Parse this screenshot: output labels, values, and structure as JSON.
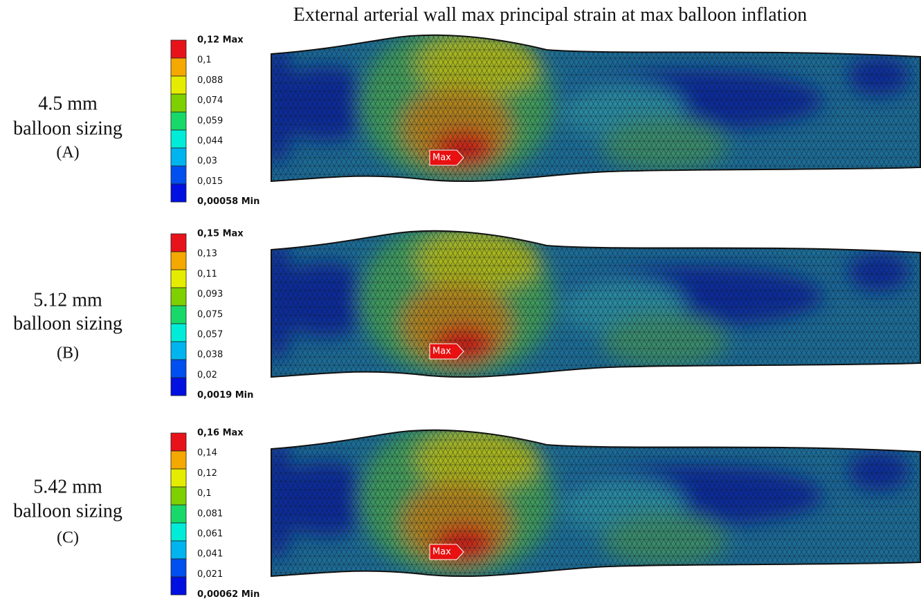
{
  "title": "External arterial wall max principal strain at max balloon inflation",
  "scale_colors": [
    "#e8121b",
    "#f5a800",
    "#e6ec00",
    "#7ed000",
    "#18d86a",
    "#00ecd8",
    "#00b4f0",
    "#0050f0",
    "#0010e0"
  ],
  "panels": [
    {
      "label": [
        "4.5 mm",
        "balloon sizing",
        "(A)"
      ],
      "legend": [
        "0,12 Max",
        "0,1",
        "0,088",
        "0,074",
        "0,059",
        "0,044",
        "0,03",
        "0,015",
        "0,00058 Min"
      ],
      "marker": "Max"
    },
    {
      "label": [
        "5.12 mm",
        "balloon sizing",
        "(B)"
      ],
      "legend": [
        "0,15 Max",
        "0,13",
        "0,11",
        "0,093",
        "0,075",
        "0,057",
        "0,038",
        "0,02",
        "0,0019 Min"
      ],
      "marker": "Max"
    },
    {
      "label": [
        "5.42 mm",
        "balloon sizing",
        "(C)"
      ],
      "legend": [
        "0,16 Max",
        "0,14",
        "0,12",
        "0,1",
        "0,081",
        "0,061",
        "0,041",
        "0,021",
        "0,00062 Min"
      ],
      "marker": "Max"
    }
  ]
}
